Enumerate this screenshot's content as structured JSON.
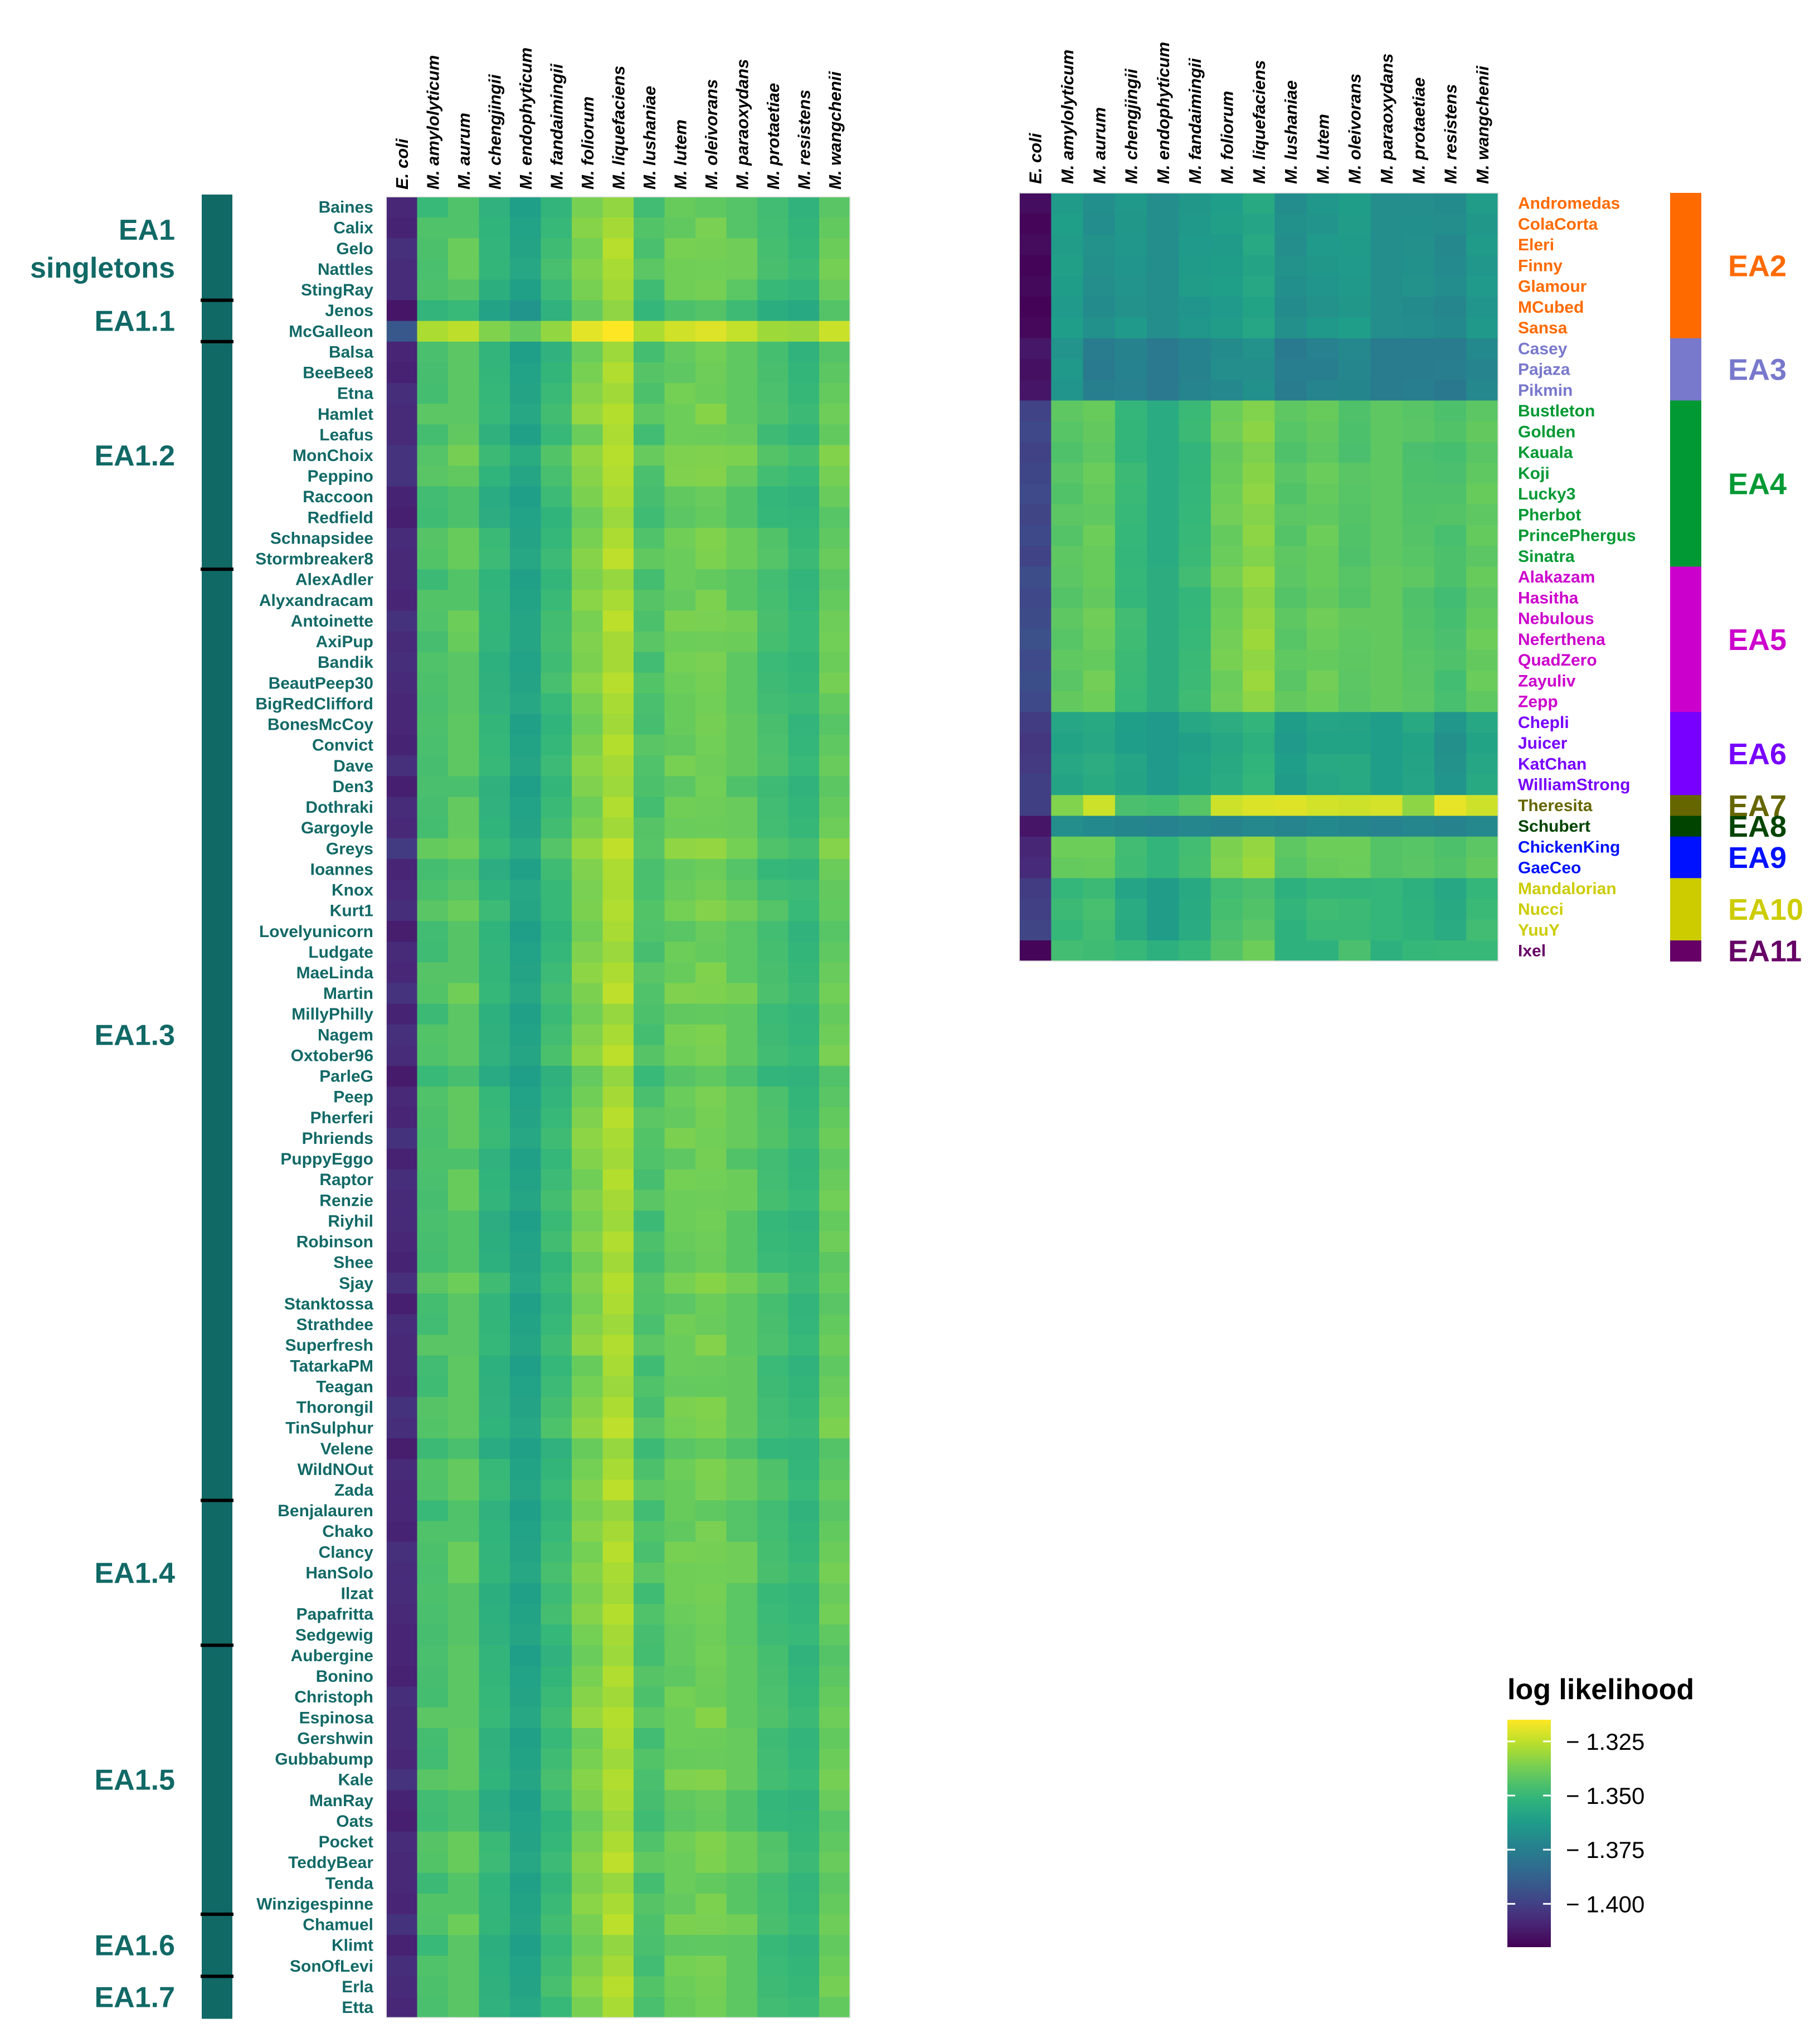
{
  "colorbar": {
    "title": "log likelihood",
    "tick_values": [
      -1.325,
      -1.35,
      -1.375,
      -1.4
    ],
    "tick_labels": [
      "− 1.325",
      "− 1.350",
      "− 1.375",
      "− 1.400"
    ],
    "min": -1.42,
    "max": -1.315,
    "colormap": "viridis"
  },
  "chart_data": [
    {
      "type": "heatmap",
      "name": "EA1 phages",
      "title": "",
      "columns": [
        "E. coli",
        "M. amylolyticum",
        "M. aurum",
        "M. chengjingii",
        "M. endophyticum",
        "M. fandaimingii",
        "M. foliorum",
        "M. liquefaciens",
        "M. lushaniae",
        "M. lutem",
        "M. oleivorans",
        "M. paraoxydans",
        "M. protaetiae",
        "M. resistens",
        "M. wangchenii"
      ],
      "rows": [
        "Baines",
        "Calix",
        "Gelo",
        "Nattles",
        "StingRay",
        "Jenos",
        "McGalleon",
        "Balsa",
        "BeeBee8",
        "Etna",
        "Hamlet",
        "Leafus",
        "MonChoix",
        "Peppino",
        "Raccoon",
        "Redfield",
        "Schnapsidee",
        "Stormbreaker8",
        "AlexAdler",
        "Alyxandracam",
        "Antoinette",
        "AxiPup",
        "Bandik",
        "BeautPeep30",
        "BigRedClifford",
        "BonesMcCoy",
        "Convict",
        "Dave",
        "Den3",
        "Dothraki",
        "Gargoyle",
        "Greys",
        "Ioannes",
        "Knox",
        "Kurt1",
        "Lovelyunicorn",
        "Ludgate",
        "MaeLinda",
        "Martin",
        "MillyPhilly",
        "Nagem",
        "Oxtober96",
        "ParleG",
        "Peep",
        "Pherferi",
        "Phriends",
        "PuppyEggo",
        "Raptor",
        "Renzie",
        "Riyhil",
        "Robinson",
        "Shee",
        "Sjay",
        "Stanktossa",
        "Strathdee",
        "Superfresh",
        "TatarkaPM",
        "Teagan",
        "Thorongil",
        "TinSulphur",
        "Velene",
        "WildNOut",
        "Zada",
        "Benjalauren",
        "Chako",
        "Clancy",
        "HanSolo",
        "Ilzat",
        "Papafritta",
        "Sedgewig",
        "Aubergine",
        "Bonino",
        "Christoph",
        "Espinosa",
        "Gershwin",
        "Gubbabump",
        "Kale",
        "ManRay",
        "Oats",
        "Pocket",
        "TeddyBear",
        "Tenda",
        "Winzigespinne",
        "Chamuel",
        "Klimt",
        "SonOfLevi",
        "Erla",
        "Etta"
      ],
      "column_profile": [
        -1.408,
        -1.345,
        -1.342,
        -1.352,
        -1.357,
        -1.349,
        -1.336,
        -1.328,
        -1.345,
        -1.339,
        -1.337,
        -1.341,
        -1.347,
        -1.348,
        -1.34
      ],
      "row_offsets": {
        "Jenos": -0.006,
        "McGalleon": 0.018,
        "MonChoix": 0.004,
        "AxiPup": 0.003,
        "Greys": 0.002,
        "Knox": 0.002
      },
      "groups": [
        {
          "label": "EA1\nsingletons",
          "rows": [
            "Baines",
            "Calix",
            "Gelo",
            "Nattles",
            "StingRay"
          ]
        },
        {
          "label": "EA1.1",
          "rows": [
            "Jenos",
            "McGalleon"
          ]
        },
        {
          "label": "EA1.2",
          "rows": [
            "Balsa",
            "BeeBee8",
            "Etna",
            "Hamlet",
            "Leafus",
            "MonChoix",
            "Peppino",
            "Raccoon",
            "Redfield",
            "Schnapsidee",
            "Stormbreaker8"
          ]
        },
        {
          "label": "EA1.3",
          "rows": [
            "AlexAdler",
            "Alyxandracam",
            "Antoinette",
            "AxiPup",
            "Bandik",
            "BeautPeep30",
            "BigRedClifford",
            "BonesMcCoy",
            "Convict",
            "Dave",
            "Den3",
            "Dothraki",
            "Gargoyle",
            "Greys",
            "Ioannes",
            "Knox",
            "Kurt1",
            "Lovelyunicorn",
            "Ludgate",
            "MaeLinda",
            "Martin",
            "MillyPhilly",
            "Nagem",
            "Oxtober96",
            "ParleG",
            "Peep",
            "Pherferi",
            "Phriends",
            "PuppyEggo",
            "Raptor",
            "Renzie",
            "Riyhil",
            "Robinson",
            "Shee",
            "Sjay",
            "Stanktossa",
            "Strathdee",
            "Superfresh",
            "TatarkaPM",
            "Teagan",
            "Thorongil",
            "TinSulphur",
            "Velene",
            "WildNOut",
            "Zada"
          ]
        },
        {
          "label": "EA1.4",
          "rows": [
            "Benjalauren",
            "Chako",
            "Clancy",
            "HanSolo",
            "Ilzat",
            "Papafritta",
            "Sedgewig"
          ]
        },
        {
          "label": "EA1.5",
          "rows": [
            "Aubergine",
            "Bonino",
            "Christoph",
            "Espinosa",
            "Gershwin",
            "Gubbabump",
            "Kale",
            "ManRay",
            "Oats",
            "Pocket",
            "TeddyBear",
            "Tenda",
            "Winzigespinne"
          ]
        },
        {
          "label": "EA1.6",
          "rows": [
            "Chamuel",
            "Klimt",
            "SonOfLevi"
          ]
        },
        {
          "label": "EA1.7",
          "rows": [
            "Erla",
            "Etta"
          ]
        }
      ],
      "group_color": "#116966"
    },
    {
      "type": "heatmap",
      "name": "EA2-EA11 phages",
      "title": "",
      "columns": [
        "E. coli",
        "M. amylolyticum",
        "M. aurum",
        "M. chengjingii",
        "M. endophyticum",
        "M. fandaimingii",
        "M. foliorum",
        "M. liquefaciens",
        "M. lushaniae",
        "M. lutem",
        "M. oleivorans",
        "M. paraoxydans",
        "M. protaetiae",
        "M. resistens",
        "M. wangchenii"
      ],
      "groups": [
        {
          "label": "EA2",
          "color": "#FF6A00",
          "rows": [
            "Andromedas",
            "ColaCorta",
            "Eleri",
            "Finny",
            "Glamour",
            "MCubed",
            "Sansa"
          ],
          "values": [
            -1.418,
            -1.362,
            -1.368,
            -1.365,
            -1.367,
            -1.364,
            -1.362,
            -1.358,
            -1.368,
            -1.365,
            -1.363,
            -1.367,
            -1.368,
            -1.37,
            -1.364
          ]
        },
        {
          "label": "EA3",
          "color": "#7878CC",
          "rows": [
            "Casey",
            "Pajaza",
            "Pikmin"
          ],
          "values": [
            -1.415,
            -1.365,
            -1.376,
            -1.374,
            -1.376,
            -1.373,
            -1.37,
            -1.368,
            -1.376,
            -1.374,
            -1.372,
            -1.375,
            -1.376,
            -1.377,
            -1.372
          ]
        },
        {
          "label": "EA4",
          "color": "#009933",
          "rows": [
            "Bustleton",
            "Golden",
            "Kauala",
            "Koji",
            "Lucky3",
            "Pherbot",
            "PrincePhergus",
            "Sinatra"
          ],
          "values": [
            -1.398,
            -1.343,
            -1.34,
            -1.35,
            -1.354,
            -1.35,
            -1.339,
            -1.334,
            -1.343,
            -1.34,
            -1.344,
            -1.34,
            -1.344,
            -1.345,
            -1.341
          ]
        },
        {
          "label": "EA5",
          "color": "#CC00CC",
          "rows": [
            "Alakazam",
            "Hasitha",
            "Nebulous",
            "Neferthena",
            "QuadZero",
            "Zayuliv",
            "Zepp"
          ],
          "values": [
            -1.396,
            -1.342,
            -1.339,
            -1.349,
            -1.353,
            -1.349,
            -1.338,
            -1.332,
            -1.342,
            -1.339,
            -1.342,
            -1.339,
            -1.343,
            -1.346,
            -1.34
          ]
        },
        {
          "label": "EA6",
          "color": "#7700FF",
          "rows": [
            "Chepli",
            "Juicer",
            "KatChan",
            "WilliamStrong"
          ],
          "values": [
            -1.402,
            -1.358,
            -1.356,
            -1.36,
            -1.362,
            -1.359,
            -1.356,
            -1.352,
            -1.362,
            -1.358,
            -1.358,
            -1.36,
            -1.358,
            -1.366,
            -1.358
          ]
        },
        {
          "label": "EA7",
          "color": "#666600",
          "rows": [
            "Theresita"
          ],
          "values": [
            -1.4,
            -1.336,
            -1.322,
            -1.346,
            -1.345,
            -1.343,
            -1.324,
            -1.32,
            -1.321,
            -1.321,
            -1.323,
            -1.32,
            -1.333,
            -1.32,
            -1.322
          ]
        },
        {
          "label": "EA8",
          "color": "#004400",
          "rows": [
            "Schubert"
          ],
          "values": [
            -1.415,
            -1.368,
            -1.372,
            -1.372,
            -1.372,
            -1.372,
            -1.372,
            -1.372,
            -1.372,
            -1.372,
            -1.372,
            -1.372,
            -1.372,
            -1.372,
            -1.372
          ]
        },
        {
          "label": "EA9",
          "color": "#0011FF",
          "rows": [
            "ChickenKing",
            "GaeCeo"
          ],
          "values": [
            -1.408,
            -1.34,
            -1.339,
            -1.347,
            -1.35,
            -1.348,
            -1.336,
            -1.331,
            -1.343,
            -1.339,
            -1.338,
            -1.342,
            -1.344,
            -1.345,
            -1.341
          ]
        },
        {
          "label": "EA10",
          "color": "#CCCC00",
          "rows": [
            "Mandalorian",
            "Nucci",
            "YuuY"
          ],
          "values": [
            -1.4,
            -1.349,
            -1.347,
            -1.357,
            -1.361,
            -1.355,
            -1.346,
            -1.344,
            -1.352,
            -1.349,
            -1.35,
            -1.349,
            -1.352,
            -1.356,
            -1.349
          ]
        },
        {
          "label": "EA11",
          "color": "#660066",
          "rows": [
            "Ixel"
          ],
          "values": [
            -1.418,
            -1.348,
            -1.347,
            -1.35,
            -1.352,
            -1.35,
            -1.345,
            -1.338,
            -1.354,
            -1.352,
            -1.346,
            -1.352,
            -1.35,
            -1.351,
            -1.349
          ]
        }
      ]
    }
  ]
}
